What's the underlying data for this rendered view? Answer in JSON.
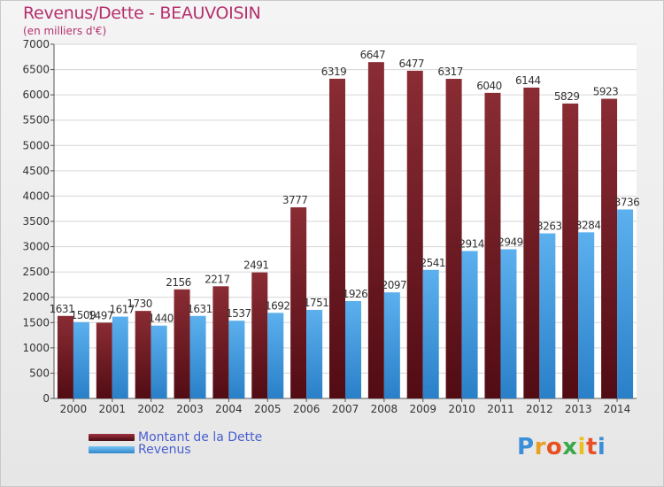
{
  "header": {
    "title": "Revenus/Dette - BEAUVOISIN",
    "subtitle": "(en milliers d'€)"
  },
  "chart_data": {
    "type": "bar",
    "categories": [
      "2000",
      "2001",
      "2002",
      "2003",
      "2004",
      "2005",
      "2006",
      "2007",
      "2008",
      "2009",
      "2010",
      "2011",
      "2012",
      "2013",
      "2014"
    ],
    "series": [
      {
        "name": "Montant de la Dette",
        "values": [
          1631,
          1497,
          1730,
          2156,
          2217,
          2491,
          3777,
          6319,
          6647,
          6477,
          6317,
          6040,
          6144,
          5829,
          5923
        ],
        "color": "#7a1f28"
      },
      {
        "name": "Revenus",
        "values": [
          1509,
          1617,
          1440,
          1631,
          1537,
          1692,
          1751,
          1926,
          2097,
          2541,
          2914,
          2949,
          3263,
          3284,
          3736
        ],
        "color": "#4ba3e3"
      }
    ],
    "ylim": [
      0,
      7000
    ],
    "yticks": [
      0,
      500,
      1000,
      1500,
      2000,
      2500,
      3000,
      3500,
      4000,
      4500,
      5000,
      5500,
      6000,
      6500,
      7000
    ],
    "grid": true,
    "legend": "bottom-left"
  },
  "legend": {
    "items": [
      {
        "label": "Montant de la Dette",
        "color": "#7a1f28"
      },
      {
        "label": "Revenus",
        "color": "#4ba3e3"
      }
    ]
  },
  "logo": {
    "text": "Proxiti",
    "letter_colors": [
      "#3a8fd8",
      "#e8a020",
      "#e85020",
      "#3aa84a",
      "#e8c020",
      "#e8502a",
      "#3a8fd8"
    ]
  }
}
